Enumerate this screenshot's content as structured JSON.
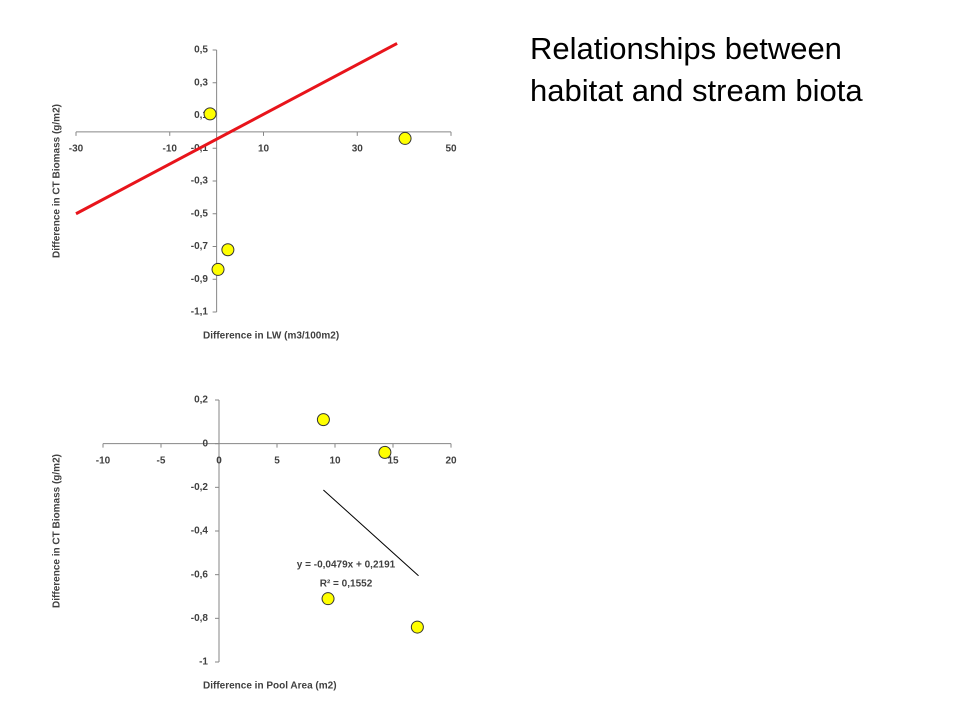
{
  "title": "Relationships between habitat and stream biota",
  "chart_data": [
    {
      "type": "scatter",
      "x_label": "Difference in LW (m3/100m2)",
      "y_label": "Difference in CT Biomass (g/m2)",
      "xlim": [
        -30,
        50
      ],
      "xticks": [
        -30,
        -10,
        10,
        30,
        50
      ],
      "ylim": [
        -1.1,
        0.5
      ],
      "yticks": [
        {
          "value": 0.5,
          "label": "0,5"
        },
        {
          "value": 0.3,
          "label": "0,3"
        },
        {
          "value": 0.1,
          "label": "0,1"
        },
        {
          "value": -0.1,
          "label": "-0,1"
        },
        {
          "value": -0.3,
          "label": "-0,3"
        },
        {
          "value": -0.5,
          "label": "-0,5"
        },
        {
          "value": -0.7,
          "label": "-0,7"
        },
        {
          "value": -0.9,
          "label": "-0,9"
        },
        {
          "value": -1.1,
          "label": "-1,1"
        }
      ],
      "x": [
        -1.4,
        40.2,
        2.4,
        0.3
      ],
      "values": [
        0.11,
        -0.04,
        -0.72,
        -0.84
      ],
      "color": "#ffff00",
      "trendline": {
        "x": [
          -30,
          38.5
        ],
        "y": [
          -0.5,
          0.54
        ],
        "color": "#e8141b"
      }
    },
    {
      "type": "scatter",
      "x_label": "Difference in Pool Area (m2)",
      "y_label": "Difference in CT Biomass (g/m2)",
      "xlim": [
        -10,
        20
      ],
      "xticks": [
        -10,
        -5,
        0,
        5,
        10,
        15,
        20
      ],
      "ylim": [
        -1,
        0.2
      ],
      "yticks": [
        {
          "value": 0.2,
          "label": "0,2"
        },
        0,
        {
          "value": -0.2,
          "label": "-0,2"
        },
        {
          "value": -0.4,
          "label": "-0,4"
        },
        {
          "value": -0.6,
          "label": "-0,6"
        },
        {
          "value": -0.8,
          "label": "-0,8"
        },
        -1
      ],
      "x": [
        9,
        14.3,
        9.4,
        17.1
      ],
      "values": [
        0.11,
        -0.04,
        -0.71,
        -0.84
      ],
      "color": "#ffff00",
      "trendline": {
        "x": [
          9,
          17.2
        ],
        "y": [
          -0.212,
          -0.605
        ],
        "color": "#000000"
      },
      "annotations": [
        "y = -0,0479x + 0,2191",
        "R² = 0,1552"
      ]
    }
  ]
}
